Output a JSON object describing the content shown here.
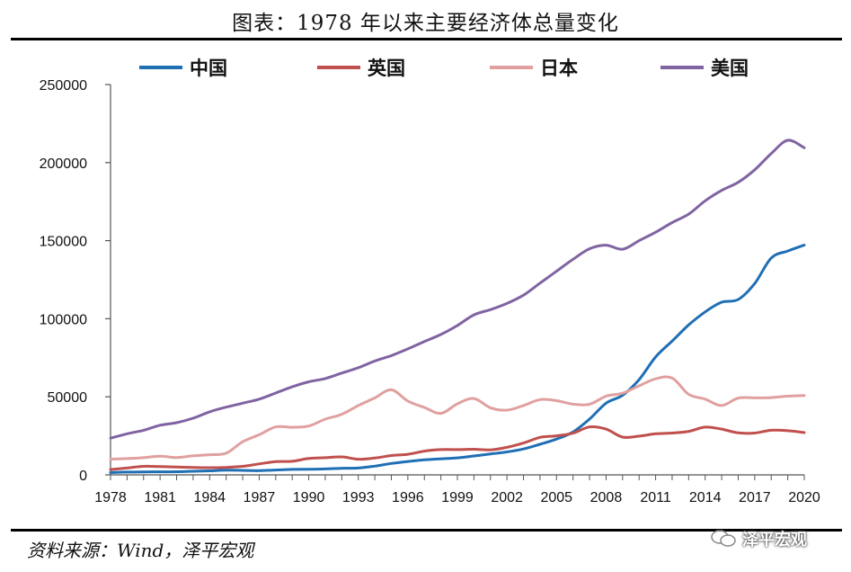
{
  "title": "图表：1978 年以来主要经济体总量变化",
  "source": "资料来源：Wind，泽平宏观",
  "watermark": "泽平宏观",
  "chart_data": {
    "type": "line",
    "title": "图表：1978 年以来主要经济体总量变化",
    "xlabel": "",
    "ylabel": "",
    "ylim": [
      0,
      250000
    ],
    "yticks": [
      0,
      50000,
      100000,
      150000,
      200000,
      250000
    ],
    "xlim": [
      1978,
      2020
    ],
    "xticks": [
      1978,
      1981,
      1984,
      1987,
      1990,
      1993,
      1996,
      1999,
      2002,
      2005,
      2008,
      2011,
      2014,
      2017,
      2020
    ],
    "legend_position": "top",
    "grid": false,
    "x": [
      1978,
      1979,
      1980,
      1981,
      1982,
      1983,
      1984,
      1985,
      1986,
      1987,
      1988,
      1989,
      1990,
      1991,
      1992,
      1993,
      1994,
      1995,
      1996,
      1997,
      1998,
      1999,
      2000,
      2001,
      2002,
      2003,
      2004,
      2005,
      2006,
      2007,
      2008,
      2009,
      2010,
      2011,
      2012,
      2013,
      2014,
      2015,
      2016,
      2017,
      2018,
      2019,
      2020
    ],
    "series": [
      {
        "name": "中国",
        "color": "#1f6fb5",
        "values": [
          1500,
          1800,
          1900,
          1950,
          2000,
          2300,
          2600,
          3000,
          2900,
          2700,
          3100,
          3500,
          3600,
          3800,
          4200,
          4400,
          5600,
          7300,
          8600,
          9600,
          10300,
          10900,
          12100,
          13400,
          14700,
          16600,
          19600,
          22900,
          27500,
          35700,
          45900,
          51000,
          61000,
          75500,
          85700,
          96000,
          104400,
          110600,
          112300,
          122600,
          138900,
          143400,
          147200
        ]
      },
      {
        "name": "英国",
        "color": "#c0504d",
        "values": [
          3400,
          4400,
          5500,
          5300,
          5000,
          4800,
          4600,
          4800,
          5500,
          7000,
          8500,
          8700,
          10500,
          11000,
          11500,
          10000,
          10800,
          12400,
          13200,
          15200,
          16200,
          16200,
          16400,
          16000,
          17600,
          20400,
          24000,
          25000,
          26700,
          30700,
          29300,
          24200,
          24800,
          26300,
          26800,
          27800,
          30600,
          29300,
          26900,
          26800,
          28600,
          28300,
          27100
        ]
      },
      {
        "name": "日本",
        "color": "#e0a0a0",
        "values": [
          10100,
          10400,
          11000,
          12000,
          11100,
          12200,
          12900,
          13900,
          21200,
          25700,
          30700,
          30500,
          31300,
          35700,
          38800,
          44400,
          49300,
          54500,
          47300,
          43200,
          39400,
          45500,
          48900,
          43000,
          41500,
          44400,
          48200,
          47500,
          45300,
          45200,
          50400,
          52300,
          57000,
          61500,
          62000,
          51600,
          48500,
          44400,
          49200,
          49300,
          49500,
          50400,
          50800
        ]
      },
      {
        "name": "美国",
        "color": "#8064a2",
        "values": [
          23500,
          26300,
          28600,
          31800,
          33400,
          36300,
          40400,
          43400,
          45900,
          48500,
          52400,
          56400,
          59600,
          61700,
          65200,
          68600,
          72900,
          76400,
          80700,
          85400,
          89900,
          95700,
          102500,
          105800,
          109800,
          115100,
          122800,
          130400,
          138100,
          144800,
          147100,
          144500,
          150000,
          155400,
          161600,
          167000,
          175500,
          182200,
          187400,
          195400,
          205800,
          214300,
          209500
        ]
      }
    ]
  }
}
